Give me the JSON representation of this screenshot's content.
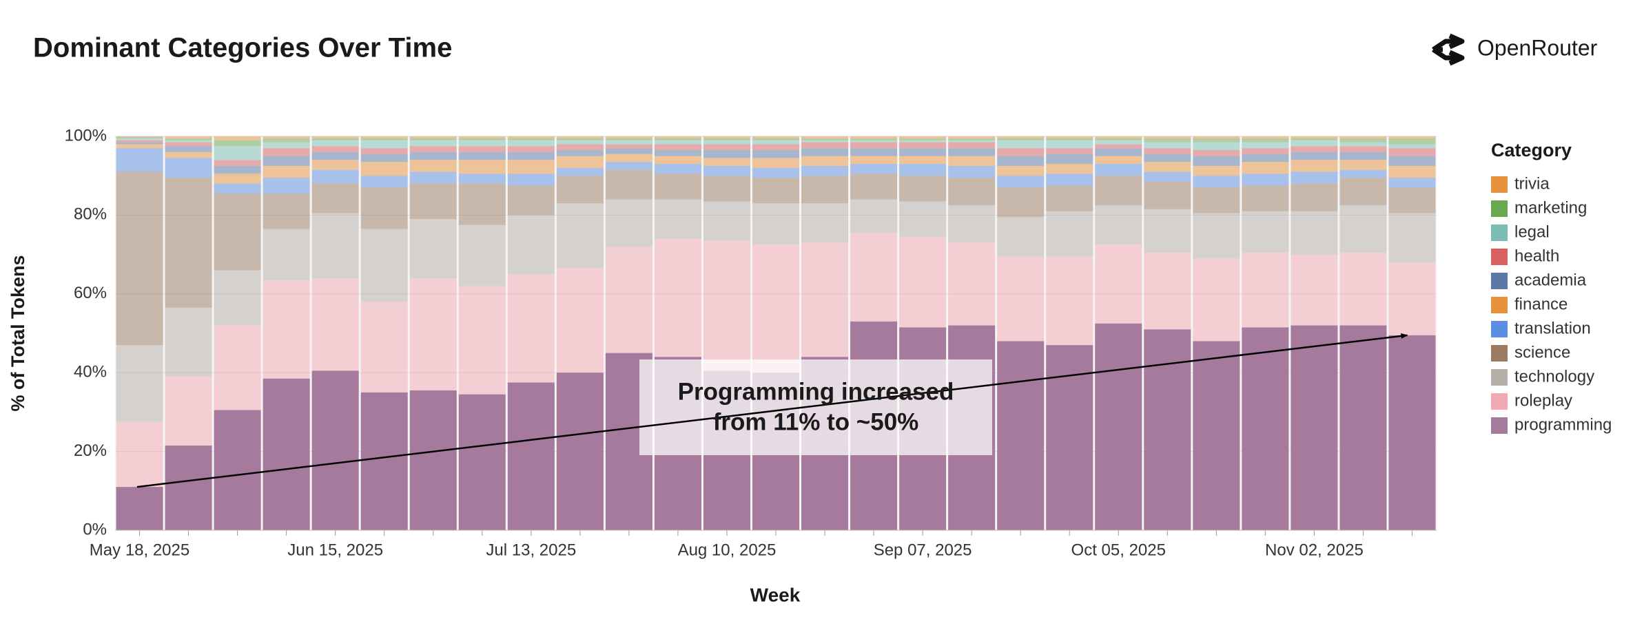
{
  "brand": "OpenRouter",
  "chart_data": {
    "type": "stacked-bar",
    "title": "Dominant Categories Over Time",
    "x_label": "Week",
    "y_label": "% of Total Tokens",
    "legend_title": "Category",
    "legend": "right",
    "annotation": [
      "Programming increased",
      "from 11% to ~50%"
    ],
    "categories": [
      "May 18, 2025",
      null,
      null,
      null,
      "Jun 15, 2025",
      null,
      null,
      null,
      "Jul 13, 2025",
      null,
      null,
      null,
      "Aug 10, 2025",
      null,
      null,
      null,
      "Sep 07, 2025",
      null,
      null,
      null,
      "Oct 05, 2025",
      null,
      null,
      null,
      "Nov 02, 2025",
      null,
      null
    ],
    "ylim": [
      0,
      100
    ],
    "yticks": [
      {
        "value": 0,
        "label": "0%"
      },
      {
        "value": 20,
        "label": "20%"
      },
      {
        "value": 40,
        "label": "40%"
      },
      {
        "value": 60,
        "label": "60%"
      },
      {
        "value": 80,
        "label": "80%"
      },
      {
        "value": 100,
        "label": "100%"
      }
    ],
    "series": [
      {
        "name": "programming",
        "color": "#a57a9c",
        "values": [
          11,
          21.5,
          30.5,
          38.5,
          40.5,
          35,
          35.5,
          34.5,
          37.5,
          40,
          45,
          44,
          40.5,
          40,
          44,
          53,
          51.5,
          52,
          48,
          47,
          52.5,
          51,
          48,
          51.5,
          52,
          52,
          49.5
        ]
      },
      {
        "name": "roleplay",
        "color": "#f2a9b4",
        "values": [
          16.5,
          17.5,
          21.5,
          25,
          23.5,
          23,
          28.5,
          27.5,
          27.5,
          26.5,
          27,
          30,
          33,
          32.5,
          29,
          22.5,
          23,
          21,
          21.5,
          22.5,
          20,
          19.5,
          21,
          19,
          18,
          18.5,
          18.5
        ]
      },
      {
        "name": "technology",
        "color": "#b5aea7",
        "values": [
          19.5,
          17.5,
          14,
          13,
          16.5,
          18.5,
          15,
          15.5,
          15,
          16.5,
          12,
          10,
          10,
          10.5,
          10,
          8.5,
          9,
          9.5,
          10,
          11.5,
          10,
          11,
          11.5,
          10.5,
          11,
          12,
          12.5
        ]
      },
      {
        "name": "science",
        "color": "#9c7c63",
        "values": [
          44,
          33,
          19.5,
          9,
          7.5,
          10.5,
          9,
          10.5,
          7.5,
          7,
          7.5,
          6.5,
          6.5,
          6.5,
          7,
          6.5,
          6.5,
          7,
          7.5,
          6.5,
          7.5,
          7,
          6.5,
          6.5,
          7,
          7,
          6.5
        ]
      },
      {
        "name": "translation",
        "color": "#5b8de0",
        "values": [
          6,
          5,
          2.5,
          4,
          3.5,
          3,
          3,
          2.5,
          3,
          2,
          2,
          2.5,
          2.5,
          2.5,
          2.5,
          2.5,
          3,
          3,
          3,
          3,
          3,
          2.5,
          3,
          3,
          3,
          2,
          2.5
        ]
      },
      {
        "name": "finance",
        "color": "#e8913c",
        "values": [
          1,
          1.5,
          2.5,
          3,
          2.5,
          3.5,
          3,
          3.5,
          3.5,
          3,
          2,
          2,
          2,
          2.5,
          2.5,
          2,
          2,
          2.5,
          2.5,
          2.5,
          2,
          2.5,
          2.5,
          3,
          3,
          2.5,
          3
        ]
      },
      {
        "name": "academia",
        "color": "#5b78a6",
        "values": [
          0.5,
          1.5,
          2,
          2.5,
          2,
          2,
          2,
          2,
          2,
          1.5,
          1.5,
          1.5,
          2,
          2,
          2,
          2,
          2,
          2,
          2.5,
          2.5,
          2,
          2,
          2.5,
          2,
          2,
          2,
          2.5
        ]
      },
      {
        "name": "health",
        "color": "#d9605f",
        "values": [
          0.5,
          1,
          1.5,
          2,
          1.5,
          1.5,
          1.5,
          1.5,
          1.5,
          1.5,
          1,
          1.5,
          1.5,
          1.5,
          1.5,
          1.5,
          1.5,
          1.5,
          2,
          1.5,
          1,
          1.5,
          1.5,
          1.5,
          1.5,
          1.5,
          2
        ]
      },
      {
        "name": "legal",
        "color": "#7ebdb4",
        "values": [
          0.5,
          0.5,
          3.5,
          1.5,
          1.5,
          2,
          1.5,
          1.5,
          1.5,
          1,
          1,
          1,
          1,
          1,
          0.5,
          0.5,
          0.5,
          0.5,
          2,
          2,
          1,
          1.5,
          2,
          1.5,
          1.5,
          1,
          1
        ]
      },
      {
        "name": "marketing",
        "color": "#6aa84f",
        "values": [
          0.3,
          0.5,
          1.5,
          1,
          0.5,
          0.5,
          0.5,
          0.5,
          0.5,
          0.5,
          0.5,
          0.5,
          0.5,
          0.5,
          0.5,
          0.5,
          0.5,
          0.5,
          0.5,
          0.5,
          0.5,
          1,
          1,
          1,
          0.5,
          1,
          1.5
        ]
      },
      {
        "name": "trivia",
        "color": "#e8913c",
        "values": [
          0.2,
          0.5,
          1,
          0.5,
          0.5,
          0.5,
          0.5,
          0.5,
          0.5,
          0.5,
          0.5,
          0.5,
          0.5,
          0.5,
          0.5,
          0.5,
          0.5,
          0.5,
          0.5,
          0.5,
          0.5,
          0.5,
          0.5,
          0.5,
          0.5,
          0.5,
          0.5
        ]
      }
    ]
  }
}
